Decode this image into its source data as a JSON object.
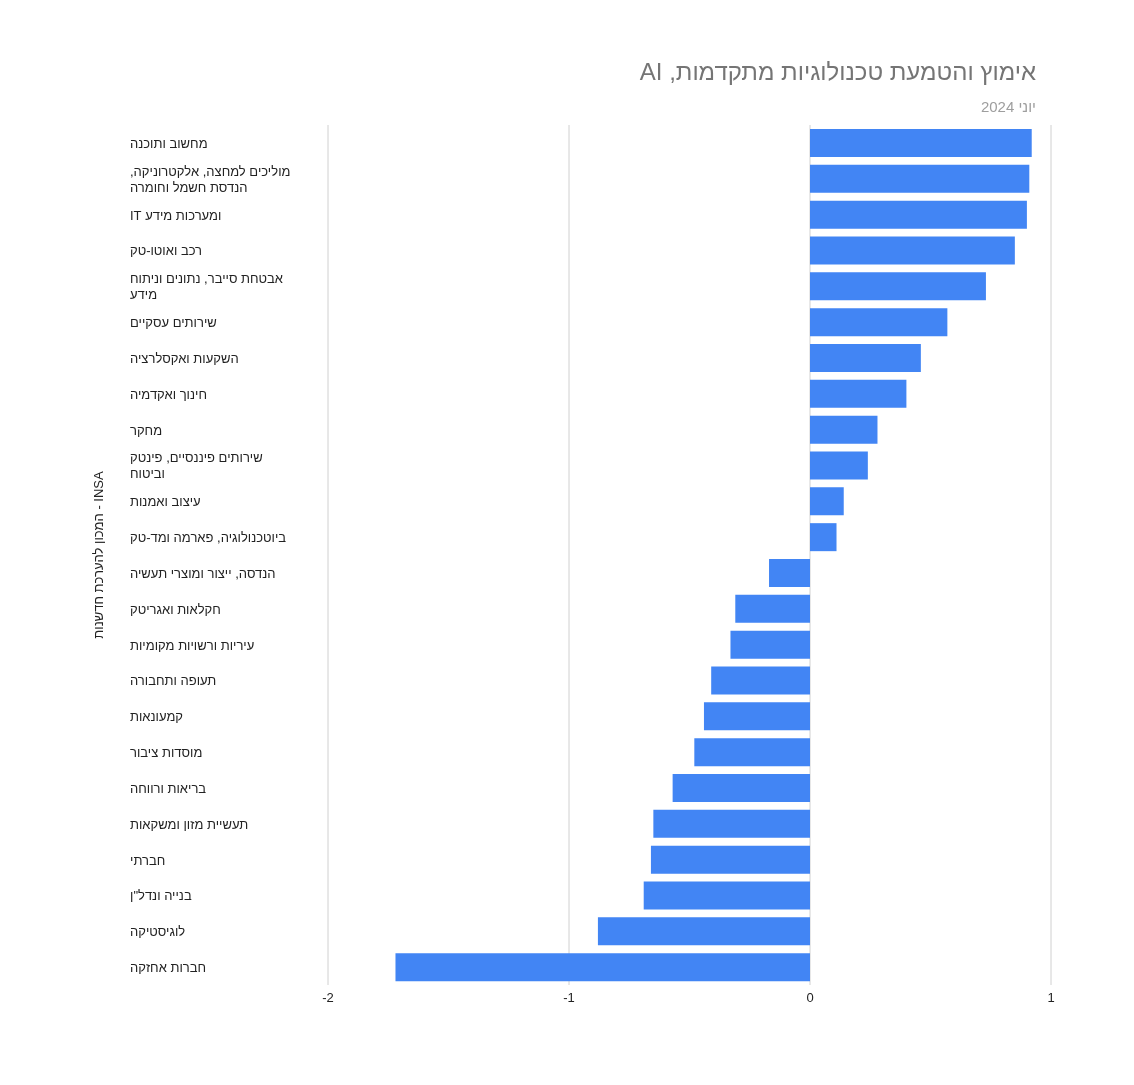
{
  "chart_data": {
    "type": "bar",
    "orientation": "horizontal",
    "title": "אימוץ והטמעת טכנולוגיות מתקדמות, AI",
    "subtitle": "יוני 2024",
    "ylabel": "המכון להערכת חדשנות - INSA",
    "categories": [
      "מחשוב ותוכנה",
      "מוליכים למחצה, אלקטרוניקה, הנדסת חשמל וחומרה",
      "ומערכות מידע IT",
      "רכב ואוטו-טק",
      "אבטחת סייבר, נתונים וניתוח מידע",
      "שירותים עסקיים",
      "השקעות ואקסלרציה",
      "חינוך ואקדמיה",
      "מחקר",
      "שירותים פיננסיים, פינטק וביטוח",
      "עיצוב ואמנות",
      "ביוטכנולוגיה, פארמה ומד-טק",
      "הנדסה, ייצור ומוצרי תעשיה",
      "חקלאות ואגריטק",
      "עיריות ורשויות מקומיות",
      "תעופה ותחבורה",
      "קמעונאות",
      "מוסדות ציבור",
      "בריאות ורווחה",
      "תעשיית מזון ומשקאות",
      "חברתי",
      "בנייה ונדל\"ן",
      "לוגיסטיקה",
      "חברות אחזקה"
    ],
    "values": [
      0.92,
      0.91,
      0.9,
      0.85,
      0.73,
      0.57,
      0.46,
      0.4,
      0.28,
      0.24,
      0.14,
      0.11,
      -0.17,
      -0.31,
      -0.33,
      -0.41,
      -0.44,
      -0.48,
      -0.57,
      -0.65,
      -0.66,
      -0.69,
      -0.88,
      -1.72
    ],
    "color": "#4285f4",
    "xlim": [
      -2,
      1
    ],
    "xticks": [
      -2,
      -1,
      0,
      1
    ],
    "grid": "x"
  }
}
